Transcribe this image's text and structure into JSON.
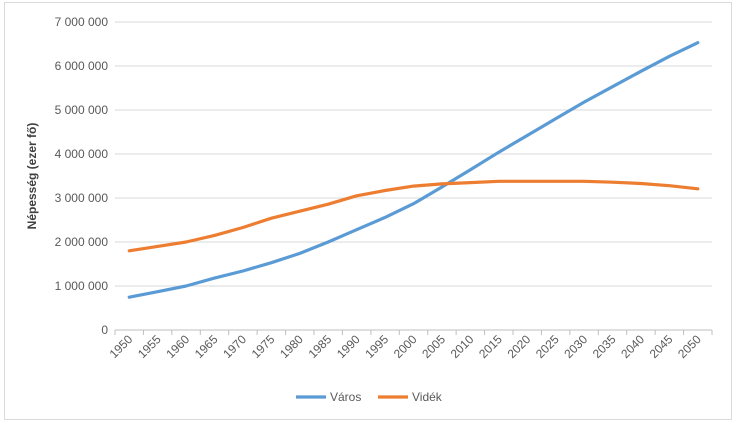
{
  "chart_data": {
    "type": "line",
    "title": "",
    "xlabel": "",
    "ylabel": "Népesség (ezer fő)",
    "categories": [
      "1950",
      "1955",
      "1960",
      "1965",
      "1970",
      "1975",
      "1980",
      "1985",
      "1990",
      "1995",
      "2000",
      "2005",
      "2010",
      "2015",
      "2020",
      "2025",
      "2030",
      "2035",
      "2040",
      "2045",
      "2050"
    ],
    "y_tick_labels": [
      "0",
      "1 000 000",
      "2 000 000",
      "3 000 000",
      "4 000 000",
      "5 000 000",
      "6 000 000",
      "7 000 000"
    ],
    "ylim": [
      0,
      7000000
    ],
    "grid": "horizontal",
    "legend_position": "bottom",
    "series": [
      {
        "name": "Város",
        "color": "#5B9BD5",
        "values": [
          746000,
          870000,
          1000000,
          1180000,
          1340000,
          1530000,
          1740000,
          2000000,
          2280000,
          2560000,
          2870000,
          3250000,
          3640000,
          4040000,
          4420000,
          4800000,
          5180000,
          5530000,
          5880000,
          6220000,
          6530000
        ]
      },
      {
        "name": "Vidék",
        "color": "#ED7D31",
        "values": [
          1800000,
          1900000,
          2000000,
          2150000,
          2330000,
          2540000,
          2700000,
          2860000,
          3050000,
          3170000,
          3270000,
          3320000,
          3350000,
          3380000,
          3380000,
          3380000,
          3380000,
          3360000,
          3330000,
          3280000,
          3210000
        ]
      }
    ]
  }
}
